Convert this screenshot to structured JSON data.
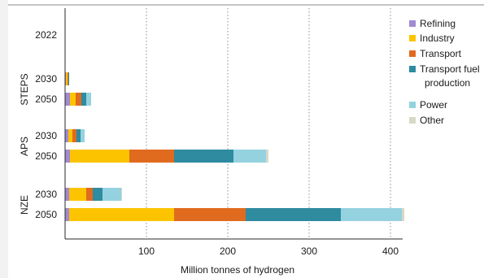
{
  "chart_data": {
    "type": "bar",
    "orientation": "horizontal",
    "stacked": true,
    "xlabel": "Million tonnes of hydrogen",
    "xlim": [
      0,
      420
    ],
    "xticks": [
      100,
      200,
      300,
      400
    ],
    "grid": "vertical dotted",
    "legend_position": "right",
    "scenarios": [
      "STEPS",
      "APS",
      "NZE"
    ],
    "rows": [
      {
        "year": "2022",
        "scenario": ""
      },
      {
        "year": "2030",
        "scenario": "STEPS"
      },
      {
        "year": "2050",
        "scenario": "STEPS"
      },
      {
        "year": "2030",
        "scenario": "APS"
      },
      {
        "year": "2050",
        "scenario": "APS"
      },
      {
        "year": "2030",
        "scenario": "NZE"
      },
      {
        "year": "2050",
        "scenario": "NZE"
      }
    ],
    "series": [
      {
        "name": "Refining",
        "color": "#a18ad0",
        "values": [
          0,
          1,
          6,
          4,
          6,
          5,
          5
        ]
      },
      {
        "name": "Industry",
        "color": "#fcc400",
        "values": [
          0,
          2,
          7,
          5,
          73,
          21,
          129
        ]
      },
      {
        "name": "Transport",
        "color": "#e06b1e",
        "values": [
          0,
          1,
          7,
          5,
          55,
          8,
          88
        ]
      },
      {
        "name": "Transport fuel production",
        "color": "#2e8ba0",
        "values": [
          0,
          1,
          6,
          5,
          73,
          12,
          117
        ]
      },
      {
        "name": "Power",
        "color": "#94d2e0",
        "values": [
          0,
          0,
          6,
          5,
          40,
          23,
          75
        ]
      },
      {
        "name": "Other",
        "color": "#d8d8c6",
        "values": [
          0,
          0,
          0,
          0,
          3,
          1,
          3
        ]
      }
    ]
  }
}
